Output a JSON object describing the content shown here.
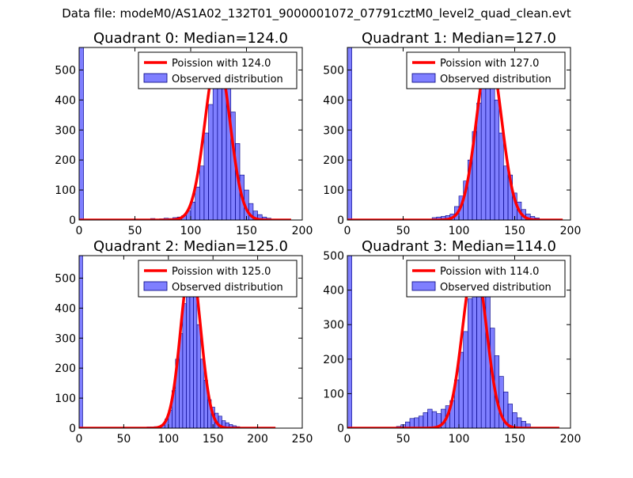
{
  "figure": {
    "suptitle": "Data file: modeM0/AS1A02_132T01_9000001072_07791cztM0_level2_quad_clean.evt",
    "colors": {
      "bars": "#0000ff",
      "bars_edge": "#000080",
      "line": "#ff0000",
      "legend_border": "#000000"
    }
  },
  "chart_data": [
    {
      "type": "bar",
      "title": "Quadrant 0: Median=124.0",
      "xlim": [
        0,
        200
      ],
      "ylim": [
        0,
        575
      ],
      "xticks": [
        0,
        50,
        100,
        150,
        200
      ],
      "yticks": [
        0,
        100,
        200,
        300,
        400,
        500
      ],
      "legend": {
        "position": "top-right",
        "line_label": "Poission with 124.0",
        "bar_label": "Observed distribution"
      },
      "bin_width": 4,
      "bars": [
        [
          0,
          575
        ],
        [
          64,
          5
        ],
        [
          68,
          3
        ],
        [
          72,
          4
        ],
        [
          76,
          6
        ],
        [
          80,
          5
        ],
        [
          84,
          8
        ],
        [
          88,
          10
        ],
        [
          92,
          15
        ],
        [
          96,
          30
        ],
        [
          100,
          60
        ],
        [
          104,
          110
        ],
        [
          108,
          180
        ],
        [
          112,
          290
        ],
        [
          116,
          385
        ],
        [
          120,
          470
        ],
        [
          124,
          545
        ],
        [
          128,
          520
        ],
        [
          132,
          450
        ],
        [
          136,
          360
        ],
        [
          140,
          255
        ],
        [
          144,
          150
        ],
        [
          148,
          100
        ],
        [
          152,
          55
        ],
        [
          156,
          30
        ],
        [
          160,
          18
        ],
        [
          164,
          10
        ],
        [
          168,
          6
        ],
        [
          172,
          3
        ],
        [
          176,
          2
        ],
        [
          180,
          1
        ]
      ],
      "poisson": {
        "mu": 124,
        "x_start": 0,
        "x_end": 190,
        "peak": 545
      }
    },
    {
      "type": "bar",
      "title": "Quadrant 1: Median=127.0",
      "xlim": [
        0,
        200
      ],
      "ylim": [
        0,
        575
      ],
      "xticks": [
        0,
        50,
        100,
        150,
        200
      ],
      "yticks": [
        0,
        100,
        200,
        300,
        400,
        500
      ],
      "legend": {
        "position": "top-right",
        "line_label": "Poission with 127.0",
        "bar_label": "Observed distribution"
      },
      "bin_width": 4,
      "bars": [
        [
          0,
          575
        ],
        [
          76,
          8
        ],
        [
          80,
          10
        ],
        [
          84,
          12
        ],
        [
          88,
          15
        ],
        [
          92,
          20
        ],
        [
          96,
          45
        ],
        [
          100,
          80
        ],
        [
          104,
          130
        ],
        [
          108,
          200
        ],
        [
          112,
          295
        ],
        [
          116,
          390
        ],
        [
          120,
          465
        ],
        [
          124,
          530
        ],
        [
          128,
          480
        ],
        [
          132,
          400
        ],
        [
          136,
          290
        ],
        [
          140,
          180
        ],
        [
          144,
          150
        ],
        [
          148,
          90
        ],
        [
          152,
          60
        ],
        [
          156,
          35
        ],
        [
          160,
          20
        ],
        [
          164,
          12
        ],
        [
          168,
          7
        ],
        [
          172,
          3
        ],
        [
          176,
          2
        ]
      ],
      "poisson": {
        "mu": 127,
        "x_start": 0,
        "x_end": 193,
        "peak": 555
      }
    },
    {
      "type": "bar",
      "title": "Quadrant 2: Median=125.0",
      "xlim": [
        0,
        250
      ],
      "ylim": [
        0,
        575
      ],
      "xticks": [
        0,
        50,
        100,
        150,
        200,
        250
      ],
      "yticks": [
        0,
        100,
        200,
        300,
        400,
        500
      ],
      "legend": {
        "position": "top-right",
        "line_label": "Poission with 125.0",
        "bar_label": "Observed distribution"
      },
      "bin_width": 4,
      "bars": [
        [
          0,
          575
        ],
        [
          72,
          3
        ],
        [
          76,
          4
        ],
        [
          80,
          4
        ],
        [
          84,
          5
        ],
        [
          88,
          6
        ],
        [
          92,
          10
        ],
        [
          96,
          30
        ],
        [
          100,
          60
        ],
        [
          104,
          125
        ],
        [
          108,
          230
        ],
        [
          112,
          315
        ],
        [
          116,
          415
        ],
        [
          120,
          540
        ],
        [
          124,
          520
        ],
        [
          128,
          440
        ],
        [
          132,
          345
        ],
        [
          136,
          230
        ],
        [
          140,
          160
        ],
        [
          144,
          95
        ],
        [
          148,
          70
        ],
        [
          152,
          50
        ],
        [
          156,
          40
        ],
        [
          160,
          25
        ],
        [
          164,
          18
        ],
        [
          168,
          12
        ],
        [
          172,
          8
        ],
        [
          176,
          5
        ],
        [
          180,
          3
        ]
      ],
      "poisson": {
        "mu": 125,
        "x_start": 0,
        "x_end": 220,
        "peak": 550
      }
    },
    {
      "type": "bar",
      "title": "Quadrant 3: Median=114.0",
      "xlim": [
        0,
        200
      ],
      "ylim": [
        0,
        500
      ],
      "xticks": [
        0,
        50,
        100,
        150,
        200
      ],
      "yticks": [
        0,
        100,
        200,
        300,
        400,
        500
      ],
      "legend": {
        "position": "top-right",
        "line_label": "Poission with 114.0",
        "bar_label": "Observed distribution"
      },
      "bin_width": 4,
      "bars": [
        [
          0,
          500
        ],
        [
          44,
          5
        ],
        [
          48,
          10
        ],
        [
          52,
          18
        ],
        [
          56,
          28
        ],
        [
          60,
          30
        ],
        [
          64,
          35
        ],
        [
          68,
          45
        ],
        [
          72,
          55
        ],
        [
          76,
          48
        ],
        [
          80,
          42
        ],
        [
          84,
          55
        ],
        [
          88,
          65
        ],
        [
          92,
          80
        ],
        [
          96,
          140
        ],
        [
          100,
          220
        ],
        [
          104,
          280
        ],
        [
          108,
          375
        ],
        [
          112,
          440
        ],
        [
          116,
          455
        ],
        [
          120,
          440
        ],
        [
          124,
          390
        ],
        [
          128,
          290
        ],
        [
          132,
          210
        ],
        [
          136,
          150
        ],
        [
          140,
          105
        ],
        [
          144,
          70
        ],
        [
          148,
          45
        ],
        [
          152,
          30
        ],
        [
          156,
          20
        ],
        [
          160,
          12
        ]
      ],
      "poisson": {
        "mu": 114,
        "x_start": 0,
        "x_end": 190,
        "peak": 480
      }
    }
  ]
}
